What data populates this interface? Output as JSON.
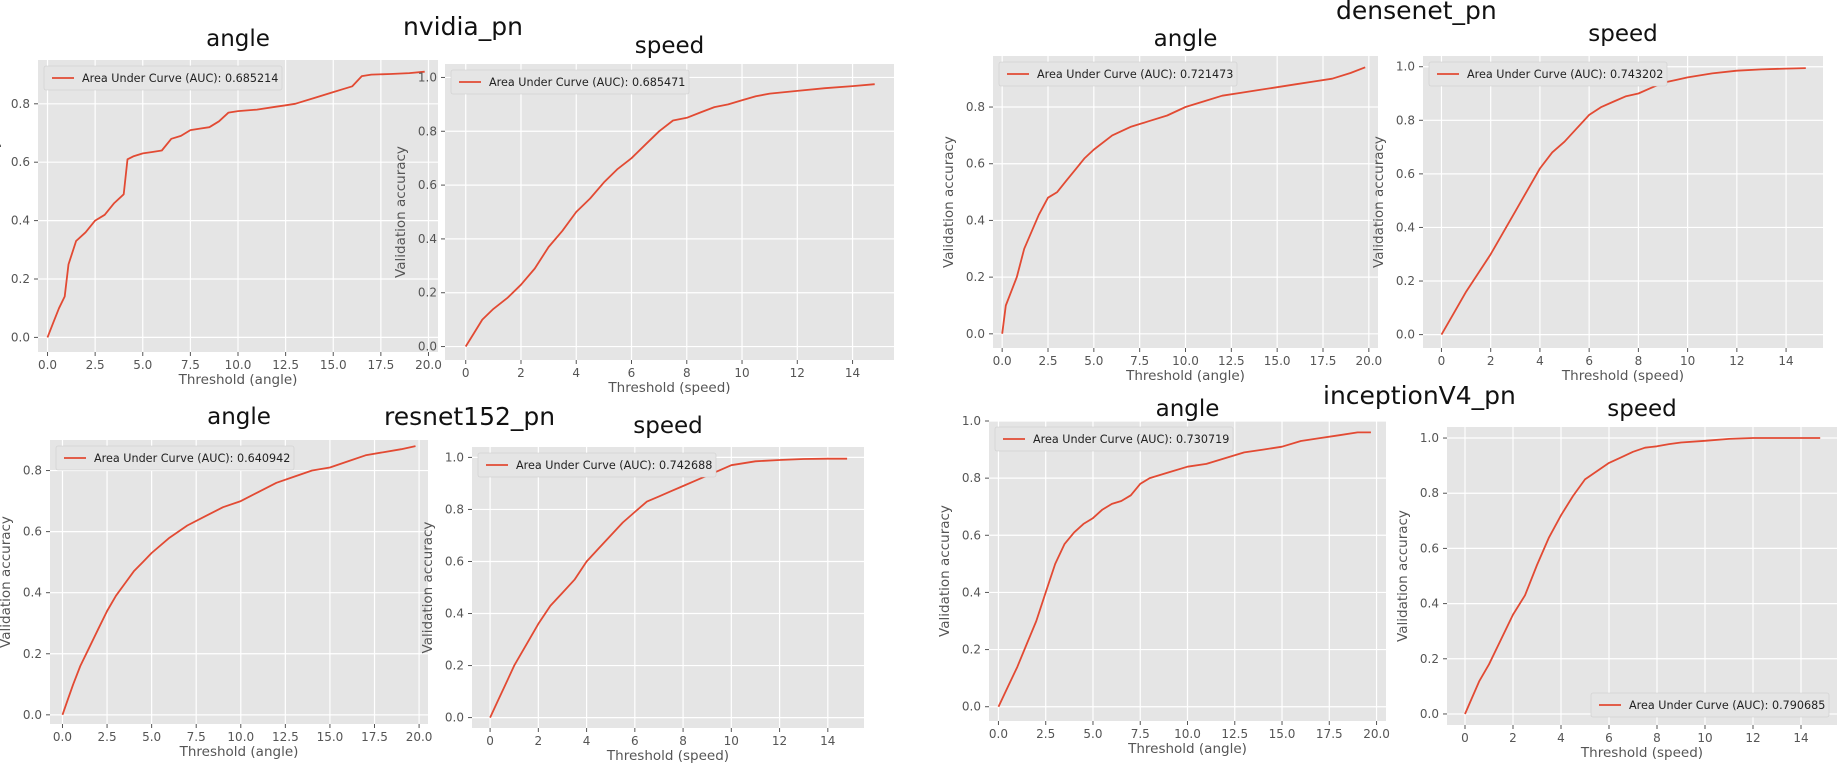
{
  "groups": [
    {
      "title": "nvidia_pn"
    },
    {
      "title": "densenet_pn"
    },
    {
      "title": "resnet152_pn"
    },
    {
      "title": "inceptionV4_pn"
    }
  ],
  "colors": {
    "line": "#E24A33",
    "panel": "#E5E5E5",
    "grid": "#ffffff",
    "tick": "#555555",
    "label": "#555555"
  },
  "chart_data": [
    {
      "type": "line",
      "group": "nvidia_pn",
      "title": "angle",
      "xlabel": "Threshold (angle)",
      "ylabel": "Validation accuracy",
      "xlim": [
        -0.5,
        20.5
      ],
      "ylim": [
        -0.05,
        0.95
      ],
      "xticks": [
        0,
        2.5,
        5,
        7.5,
        10,
        12.5,
        15,
        17.5,
        20
      ],
      "xtick_labels": [
        "0.0",
        "2.5",
        "5.0",
        "7.5",
        "10.0",
        "12.5",
        "15.0",
        "17.5",
        "20.0"
      ],
      "yticks": [
        0,
        0.2,
        0.4,
        0.6,
        0.8
      ],
      "ytick_labels": [
        "0.0",
        "0.2",
        "0.4",
        "0.6",
        "0.8"
      ],
      "legend": "Area Under Curve (AUC): 0.685214",
      "legend_loc": "upper left",
      "series": [
        {
          "x": [
            0,
            0.3,
            0.6,
            0.9,
            1.1,
            1.5,
            2,
            2.5,
            3,
            3.5,
            4,
            4.2,
            4.5,
            5,
            5.5,
            6,
            6.5,
            7,
            7.5,
            8,
            8.5,
            9,
            9.5,
            10,
            11,
            12,
            12.5,
            13,
            14,
            15,
            15.5,
            16,
            16.5,
            17,
            18,
            19,
            19.8
          ],
          "y": [
            0,
            0.05,
            0.1,
            0.14,
            0.25,
            0.33,
            0.36,
            0.4,
            0.42,
            0.46,
            0.49,
            0.61,
            0.62,
            0.63,
            0.635,
            0.64,
            0.68,
            0.69,
            0.71,
            0.715,
            0.72,
            0.74,
            0.77,
            0.775,
            0.78,
            0.79,
            0.795,
            0.8,
            0.82,
            0.84,
            0.85,
            0.86,
            0.895,
            0.9,
            0.902,
            0.905,
            0.91
          ]
        }
      ]
    },
    {
      "type": "line",
      "group": "nvidia_pn",
      "title": "speed",
      "xlabel": "Threshold (speed)",
      "ylabel": "Validation accuracy",
      "xlim": [
        -0.75,
        15.5
      ],
      "ylim": [
        -0.05,
        1.05
      ],
      "xticks": [
        0,
        2,
        4,
        6,
        8,
        10,
        12,
        14
      ],
      "xtick_labels": [
        "0",
        "2",
        "4",
        "6",
        "8",
        "10",
        "12",
        "14"
      ],
      "yticks": [
        0,
        0.2,
        0.4,
        0.6,
        0.8,
        1.0
      ],
      "ytick_labels": [
        "0.0",
        "0.2",
        "0.4",
        "0.6",
        "0.8",
        "1.0"
      ],
      "legend": "Area Under Curve (AUC): 0.685471",
      "legend_loc": "upper left",
      "series": [
        {
          "x": [
            0,
            0.3,
            0.6,
            1,
            1.5,
            2,
            2.5,
            3,
            3.5,
            4,
            4.5,
            5,
            5.5,
            6,
            6.5,
            7,
            7.5,
            8,
            8.5,
            9,
            9.5,
            10,
            10.5,
            11,
            12,
            13,
            14,
            14.8
          ],
          "y": [
            0,
            0.05,
            0.1,
            0.14,
            0.18,
            0.23,
            0.29,
            0.37,
            0.43,
            0.5,
            0.55,
            0.61,
            0.66,
            0.7,
            0.75,
            0.8,
            0.84,
            0.85,
            0.87,
            0.89,
            0.9,
            0.915,
            0.93,
            0.94,
            0.95,
            0.96,
            0.968,
            0.975
          ]
        }
      ]
    },
    {
      "type": "line",
      "group": "densenet_pn",
      "title": "angle",
      "xlabel": "Threshold (angle)",
      "ylabel": "Validation accuracy",
      "xlim": [
        -0.5,
        20.5
      ],
      "ylim": [
        -0.05,
        0.98
      ],
      "xticks": [
        0,
        2.5,
        5,
        7.5,
        10,
        12.5,
        15,
        17.5,
        20
      ],
      "xtick_labels": [
        "0.0",
        "2.5",
        "5.0",
        "7.5",
        "10.0",
        "12.5",
        "15.0",
        "17.5",
        "20.0"
      ],
      "yticks": [
        0,
        0.2,
        0.4,
        0.6,
        0.8
      ],
      "ytick_labels": [
        "0.0",
        "0.2",
        "0.4",
        "0.6",
        "0.8"
      ],
      "legend": "Area Under Curve (AUC): 0.721473",
      "legend_loc": "upper left",
      "series": [
        {
          "x": [
            0,
            0.2,
            0.5,
            0.8,
            1.2,
            1.6,
            2,
            2.5,
            3,
            3.5,
            4,
            4.5,
            5,
            6,
            7,
            8,
            9,
            10,
            11,
            12,
            13,
            14,
            15,
            16,
            17,
            18,
            19,
            19.8
          ],
          "y": [
            0,
            0.1,
            0.15,
            0.2,
            0.3,
            0.36,
            0.42,
            0.48,
            0.5,
            0.54,
            0.58,
            0.62,
            0.65,
            0.7,
            0.73,
            0.75,
            0.77,
            0.8,
            0.82,
            0.84,
            0.85,
            0.86,
            0.87,
            0.88,
            0.89,
            0.9,
            0.92,
            0.94
          ]
        }
      ]
    },
    {
      "type": "line",
      "group": "densenet_pn",
      "title": "speed",
      "xlabel": "Threshold (speed)",
      "ylabel": "Validation accuracy",
      "xlim": [
        -0.75,
        15.5
      ],
      "ylim": [
        -0.05,
        1.04
      ],
      "xticks": [
        0,
        2,
        4,
        6,
        8,
        10,
        12,
        14
      ],
      "xtick_labels": [
        "0",
        "2",
        "4",
        "6",
        "8",
        "10",
        "12",
        "14"
      ],
      "yticks": [
        0,
        0.2,
        0.4,
        0.6,
        0.8,
        1.0
      ],
      "ytick_labels": [
        "0.0",
        "0.2",
        "0.4",
        "0.6",
        "0.8",
        "1.0"
      ],
      "legend": "Area Under Curve (AUC): 0.743202",
      "legend_loc": "upper left",
      "series": [
        {
          "x": [
            0,
            0.5,
            1,
            1.5,
            2,
            2.5,
            3,
            3.5,
            4,
            4.5,
            5,
            5.5,
            6,
            6.5,
            7,
            7.5,
            8,
            8.5,
            9,
            9.5,
            10,
            11,
            12,
            13,
            14,
            14.8
          ],
          "y": [
            0,
            0.08,
            0.16,
            0.23,
            0.3,
            0.38,
            0.46,
            0.54,
            0.62,
            0.68,
            0.72,
            0.77,
            0.82,
            0.85,
            0.87,
            0.89,
            0.9,
            0.92,
            0.94,
            0.95,
            0.96,
            0.975,
            0.985,
            0.99,
            0.993,
            0.995
          ]
        }
      ]
    },
    {
      "type": "line",
      "group": "resnet152_pn",
      "title": "angle",
      "xlabel": "Threshold (angle)",
      "ylabel": "Validation accuracy",
      "xlim": [
        -0.7,
        20.5
      ],
      "ylim": [
        -0.03,
        0.9
      ],
      "xticks": [
        0,
        2.5,
        5,
        7.5,
        10,
        12.5,
        15,
        17.5,
        20
      ],
      "xtick_labels": [
        "0.0",
        "2.5",
        "5.0",
        "7.5",
        "10.0",
        "12.5",
        "15.0",
        "17.5",
        "20.0"
      ],
      "yticks": [
        0,
        0.2,
        0.4,
        0.6,
        0.8
      ],
      "ytick_labels": [
        "0.0",
        "0.2",
        "0.4",
        "0.6",
        "0.8"
      ],
      "legend": "Area Under Curve (AUC): 0.640942",
      "legend_loc": "upper left",
      "series": [
        {
          "x": [
            0,
            0.3,
            0.6,
            1,
            1.5,
            2,
            2.5,
            3,
            3.5,
            4,
            4.5,
            5,
            6,
            7,
            8,
            9,
            10,
            11,
            12,
            13,
            14,
            15,
            16,
            17,
            18,
            19,
            19.8
          ],
          "y": [
            0,
            0.05,
            0.1,
            0.16,
            0.22,
            0.28,
            0.34,
            0.39,
            0.43,
            0.47,
            0.5,
            0.53,
            0.58,
            0.62,
            0.65,
            0.68,
            0.7,
            0.73,
            0.76,
            0.78,
            0.8,
            0.81,
            0.83,
            0.85,
            0.86,
            0.87,
            0.88
          ]
        }
      ]
    },
    {
      "type": "line",
      "group": "resnet152_pn",
      "title": "speed",
      "xlabel": "Threshold (speed)",
      "ylabel": "Validation accuracy",
      "xlim": [
        -0.75,
        15.5
      ],
      "ylim": [
        -0.04,
        1.04
      ],
      "xticks": [
        0,
        2,
        4,
        6,
        8,
        10,
        12,
        14
      ],
      "xtick_labels": [
        "0",
        "2",
        "4",
        "6",
        "8",
        "10",
        "12",
        "14"
      ],
      "yticks": [
        0,
        0.2,
        0.4,
        0.6,
        0.8,
        1.0
      ],
      "ytick_labels": [
        "0.0",
        "0.2",
        "0.4",
        "0.6",
        "0.8",
        "1.0"
      ],
      "legend": "Area Under Curve (AUC): 0.742688",
      "legend_loc": "upper left",
      "series": [
        {
          "x": [
            0,
            0.3,
            0.6,
            1,
            1.5,
            2,
            2.5,
            3,
            3.5,
            4,
            4.5,
            5,
            5.5,
            6,
            6.5,
            7,
            7.5,
            8,
            8.5,
            9,
            9.5,
            10,
            11,
            12,
            13,
            14,
            14.8
          ],
          "y": [
            0,
            0.06,
            0.12,
            0.2,
            0.28,
            0.36,
            0.43,
            0.48,
            0.53,
            0.6,
            0.65,
            0.7,
            0.75,
            0.79,
            0.83,
            0.85,
            0.87,
            0.89,
            0.91,
            0.93,
            0.95,
            0.97,
            0.985,
            0.99,
            0.994,
            0.995,
            0.995
          ]
        }
      ]
    },
    {
      "type": "line",
      "group": "inceptionV4_pn",
      "title": "angle",
      "xlabel": "Threshold (angle)",
      "ylabel": "Validation accuracy",
      "xlim": [
        -0.5,
        20.5
      ],
      "ylim": [
        -0.05,
        1.0
      ],
      "xticks": [
        0,
        2.5,
        5,
        7.5,
        10,
        12.5,
        15,
        17.5,
        20
      ],
      "xtick_labels": [
        "0.0",
        "2.5",
        "5.0",
        "7.5",
        "10.0",
        "12.5",
        "15.0",
        "17.5",
        "20.0"
      ],
      "yticks": [
        0,
        0.2,
        0.4,
        0.6,
        0.8,
        1.0
      ],
      "ytick_labels": [
        "0.0",
        "0.2",
        "0.4",
        "0.6",
        "0.8",
        "1.0"
      ],
      "legend": "Area Under Curve (AUC): 0.730719",
      "legend_loc": "upper left",
      "series": [
        {
          "x": [
            0,
            0.5,
            1,
            1.5,
            2,
            2.5,
            3,
            3.5,
            4,
            4.5,
            5,
            5.5,
            6,
            6.5,
            7,
            7.5,
            8,
            9,
            10,
            11,
            12,
            13,
            14,
            15,
            16,
            17,
            18,
            19,
            19.7
          ],
          "y": [
            0,
            0.07,
            0.14,
            0.22,
            0.3,
            0.4,
            0.5,
            0.57,
            0.61,
            0.64,
            0.66,
            0.69,
            0.71,
            0.72,
            0.74,
            0.78,
            0.8,
            0.82,
            0.84,
            0.85,
            0.87,
            0.89,
            0.9,
            0.91,
            0.93,
            0.94,
            0.95,
            0.96,
            0.96
          ]
        }
      ]
    },
    {
      "type": "line",
      "group": "inceptionV4_pn",
      "title": "speed",
      "xlabel": "Threshold (speed)",
      "ylabel": "Validation accuracy",
      "xlim": [
        -0.75,
        15.5
      ],
      "ylim": [
        -0.04,
        1.04
      ],
      "xticks": [
        0,
        2,
        4,
        6,
        8,
        10,
        12,
        14
      ],
      "xtick_labels": [
        "0",
        "2",
        "4",
        "6",
        "8",
        "10",
        "12",
        "14"
      ],
      "yticks": [
        0,
        0.2,
        0.4,
        0.6,
        0.8,
        1.0
      ],
      "ytick_labels": [
        "0.0",
        "0.2",
        "0.4",
        "0.6",
        "0.8",
        "1.0"
      ],
      "legend": "Area Under Curve (AUC): 0.790685",
      "legend_loc": "lower right",
      "series": [
        {
          "x": [
            0,
            0.3,
            0.6,
            1,
            1.5,
            2,
            2.5,
            3,
            3.5,
            4,
            4.5,
            5,
            5.5,
            6,
            6.5,
            7,
            7.5,
            8,
            8.5,
            9,
            10,
            11,
            12,
            13,
            14,
            14.8
          ],
          "y": [
            0,
            0.06,
            0.12,
            0.18,
            0.27,
            0.36,
            0.43,
            0.54,
            0.64,
            0.72,
            0.79,
            0.85,
            0.88,
            0.91,
            0.93,
            0.95,
            0.965,
            0.97,
            0.978,
            0.984,
            0.99,
            0.997,
            1.0,
            1.0,
            1.0,
            1.0
          ]
        }
      ]
    }
  ]
}
